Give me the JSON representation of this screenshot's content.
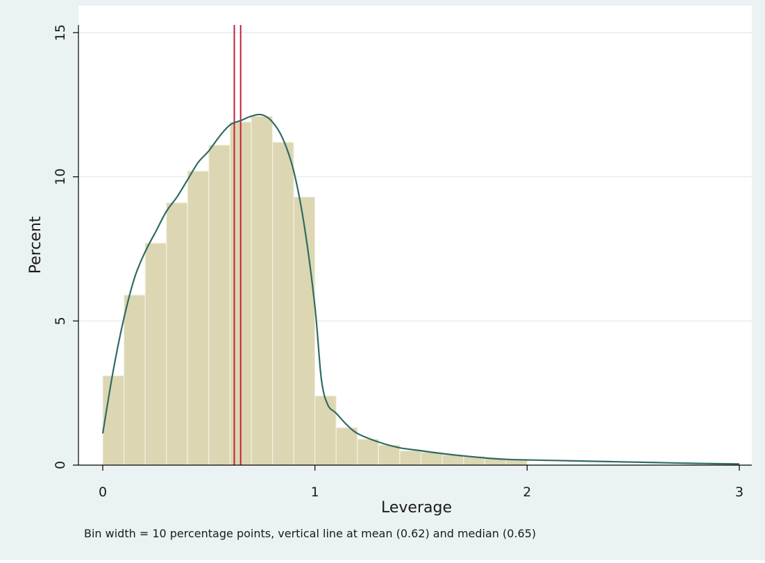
{
  "chart_data": {
    "type": "bar",
    "subtype": "histogram",
    "title": "",
    "xlabel": "Leverage",
    "ylabel": "Percent",
    "note": "Bin width = 10 percentage points, vertical line at mean (0.62) and median (0.65)",
    "xlim": [
      0,
      3
    ],
    "ylim": [
      0,
      15
    ],
    "xticks": [
      0,
      1,
      2,
      3
    ],
    "yticks": [
      0,
      5,
      10,
      15
    ],
    "grid": true,
    "bin_width": 0.1,
    "bins": [
      {
        "start": 0.0,
        "end": 0.1,
        "value": 3.1
      },
      {
        "start": 0.1,
        "end": 0.2,
        "value": 5.9
      },
      {
        "start": 0.2,
        "end": 0.3,
        "value": 7.7
      },
      {
        "start": 0.3,
        "end": 0.4,
        "value": 9.1
      },
      {
        "start": 0.4,
        "end": 0.5,
        "value": 10.2
      },
      {
        "start": 0.5,
        "end": 0.6,
        "value": 11.1
      },
      {
        "start": 0.6,
        "end": 0.7,
        "value": 11.9
      },
      {
        "start": 0.7,
        "end": 0.8,
        "value": 12.1
      },
      {
        "start": 0.8,
        "end": 0.9,
        "value": 11.2
      },
      {
        "start": 0.9,
        "end": 1.0,
        "value": 9.3
      },
      {
        "start": 1.0,
        "end": 1.1,
        "value": 2.4
      },
      {
        "start": 1.1,
        "end": 1.2,
        "value": 1.3
      },
      {
        "start": 1.2,
        "end": 1.3,
        "value": 0.9
      },
      {
        "start": 1.3,
        "end": 1.4,
        "value": 0.7
      },
      {
        "start": 1.4,
        "end": 1.5,
        "value": 0.5
      },
      {
        "start": 1.5,
        "end": 1.6,
        "value": 0.45
      },
      {
        "start": 1.6,
        "end": 1.7,
        "value": 0.35
      },
      {
        "start": 1.7,
        "end": 1.8,
        "value": 0.3
      },
      {
        "start": 1.8,
        "end": 1.9,
        "value": 0.25
      },
      {
        "start": 1.9,
        "end": 2.0,
        "value": 0.2
      }
    ],
    "density_curve": {
      "x": [
        0.0,
        0.05,
        0.1,
        0.15,
        0.2,
        0.25,
        0.3,
        0.35,
        0.4,
        0.45,
        0.5,
        0.55,
        0.6,
        0.65,
        0.7,
        0.75,
        0.8,
        0.85,
        0.9,
        0.95,
        1.0,
        1.03,
        1.06,
        1.1,
        1.15,
        1.2,
        1.3,
        1.4,
        1.5,
        1.6,
        1.7,
        1.8,
        1.9,
        2.0,
        2.2,
        2.4,
        2.6,
        2.8,
        3.0
      ],
      "y": [
        1.1,
        3.3,
        5.1,
        6.5,
        7.4,
        8.1,
        8.8,
        9.3,
        9.9,
        10.5,
        10.9,
        11.4,
        11.8,
        11.95,
        12.1,
        12.15,
        11.9,
        11.3,
        10.2,
        8.3,
        5.5,
        3.0,
        2.1,
        1.8,
        1.4,
        1.1,
        0.8,
        0.6,
        0.5,
        0.4,
        0.32,
        0.25,
        0.2,
        0.18,
        0.15,
        0.12,
        0.09,
        0.06,
        0.04
      ]
    },
    "vertical_lines": [
      {
        "label": "mean",
        "x": 0.62
      },
      {
        "label": "median",
        "x": 0.65
      }
    ],
    "colors": {
      "background": "#eaf2f3",
      "plot_background": "#ffffff",
      "bar_fill": "#dcd6b2",
      "bar_edge": "#f4f1e2",
      "curve": "#2e6b63",
      "vertical_line": "#c0203a",
      "grid": "#e3eeee"
    }
  }
}
